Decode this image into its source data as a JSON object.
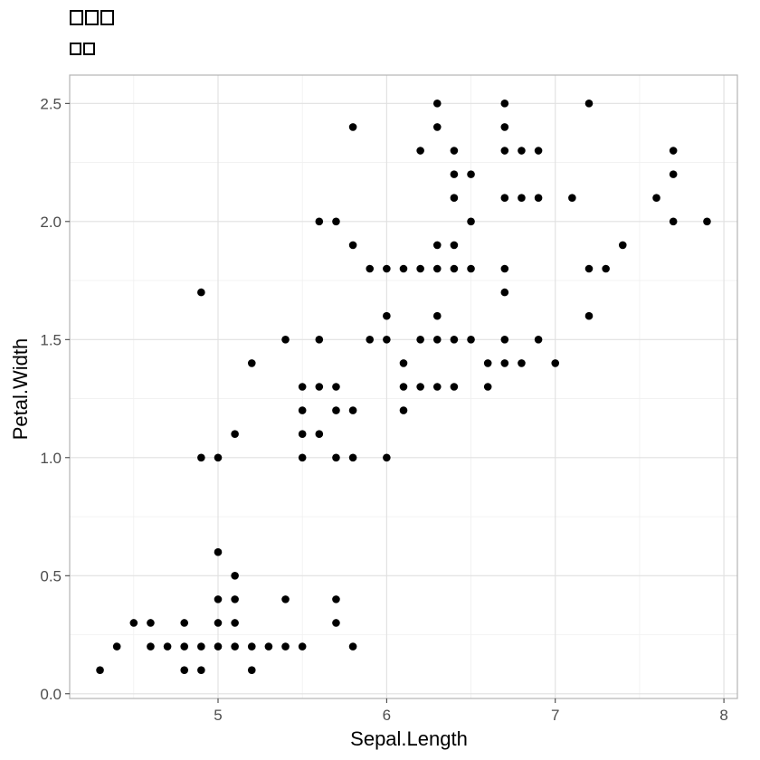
{
  "chart_data": {
    "type": "scatter",
    "title": "□□□",
    "subtitle": "□□",
    "xlabel": "Sepal.Length",
    "ylabel": "Petal.Width",
    "xlim": [
      4.12,
      8.08
    ],
    "ylim": [
      -0.02,
      2.62
    ],
    "x_ticks": [
      "5",
      "6",
      "7",
      "8"
    ],
    "y_ticks": [
      "0.0",
      "0.5",
      "1.0",
      "1.5",
      "2.0",
      "2.5"
    ],
    "grid": true,
    "point_color": "#000000",
    "points": [
      [
        4.3,
        0.1
      ],
      [
        4.4,
        0.2
      ],
      [
        4.5,
        0.3
      ],
      [
        4.6,
        0.2
      ],
      [
        4.6,
        0.3
      ],
      [
        4.7,
        0.2
      ],
      [
        4.8,
        0.1
      ],
      [
        4.8,
        0.2
      ],
      [
        4.8,
        0.3
      ],
      [
        4.9,
        0.1
      ],
      [
        4.9,
        0.2
      ],
      [
        4.9,
        1.0
      ],
      [
        4.9,
        1.7
      ],
      [
        5.0,
        0.2
      ],
      [
        5.0,
        0.3
      ],
      [
        5.0,
        0.4
      ],
      [
        5.0,
        0.6
      ],
      [
        5.0,
        1.0
      ],
      [
        5.1,
        0.2
      ],
      [
        5.1,
        0.3
      ],
      [
        5.1,
        0.4
      ],
      [
        5.1,
        0.5
      ],
      [
        5.1,
        1.1
      ],
      [
        5.2,
        0.1
      ],
      [
        5.2,
        0.2
      ],
      [
        5.2,
        1.4
      ],
      [
        5.3,
        0.2
      ],
      [
        5.4,
        0.2
      ],
      [
        5.4,
        0.4
      ],
      [
        5.4,
        1.5
      ],
      [
        5.5,
        0.2
      ],
      [
        5.5,
        1.0
      ],
      [
        5.5,
        1.1
      ],
      [
        5.5,
        1.2
      ],
      [
        5.5,
        1.3
      ],
      [
        5.6,
        1.1
      ],
      [
        5.6,
        1.3
      ],
      [
        5.6,
        1.5
      ],
      [
        5.6,
        2.0
      ],
      [
        5.7,
        0.3
      ],
      [
        5.7,
        0.4
      ],
      [
        5.7,
        1.0
      ],
      [
        5.7,
        1.2
      ],
      [
        5.7,
        1.3
      ],
      [
        5.7,
        2.0
      ],
      [
        5.8,
        0.2
      ],
      [
        5.8,
        1.0
      ],
      [
        5.8,
        1.2
      ],
      [
        5.8,
        1.9
      ],
      [
        5.8,
        2.4
      ],
      [
        5.9,
        1.5
      ],
      [
        5.9,
        1.8
      ],
      [
        6.0,
        1.0
      ],
      [
        6.0,
        1.5
      ],
      [
        6.0,
        1.6
      ],
      [
        6.0,
        1.8
      ],
      [
        6.1,
        1.2
      ],
      [
        6.1,
        1.3
      ],
      [
        6.1,
        1.4
      ],
      [
        6.1,
        1.8
      ],
      [
        6.2,
        1.3
      ],
      [
        6.2,
        1.5
      ],
      [
        6.2,
        1.8
      ],
      [
        6.2,
        2.3
      ],
      [
        6.3,
        1.3
      ],
      [
        6.3,
        1.5
      ],
      [
        6.3,
        1.6
      ],
      [
        6.3,
        1.8
      ],
      [
        6.3,
        1.9
      ],
      [
        6.3,
        2.4
      ],
      [
        6.3,
        2.5
      ],
      [
        6.4,
        1.3
      ],
      [
        6.4,
        1.5
      ],
      [
        6.4,
        1.8
      ],
      [
        6.4,
        1.9
      ],
      [
        6.4,
        2.1
      ],
      [
        6.4,
        2.2
      ],
      [
        6.4,
        2.3
      ],
      [
        6.5,
        1.5
      ],
      [
        6.5,
        1.8
      ],
      [
        6.5,
        2.0
      ],
      [
        6.5,
        2.2
      ],
      [
        6.6,
        1.3
      ],
      [
        6.6,
        1.4
      ],
      [
        6.7,
        1.4
      ],
      [
        6.7,
        1.5
      ],
      [
        6.7,
        1.7
      ],
      [
        6.7,
        1.8
      ],
      [
        6.7,
        2.1
      ],
      [
        6.7,
        2.3
      ],
      [
        6.7,
        2.4
      ],
      [
        6.7,
        2.5
      ],
      [
        6.8,
        1.4
      ],
      [
        6.8,
        2.1
      ],
      [
        6.8,
        2.3
      ],
      [
        6.9,
        1.5
      ],
      [
        6.9,
        2.1
      ],
      [
        6.9,
        2.3
      ],
      [
        7.0,
        1.4
      ],
      [
        7.1,
        2.1
      ],
      [
        7.2,
        1.6
      ],
      [
        7.2,
        1.8
      ],
      [
        7.2,
        2.5
      ],
      [
        7.3,
        1.8
      ],
      [
        7.4,
        1.9
      ],
      [
        7.6,
        2.1
      ],
      [
        7.7,
        2.0
      ],
      [
        7.7,
        2.2
      ],
      [
        7.7,
        2.3
      ],
      [
        7.9,
        2.0
      ]
    ]
  }
}
